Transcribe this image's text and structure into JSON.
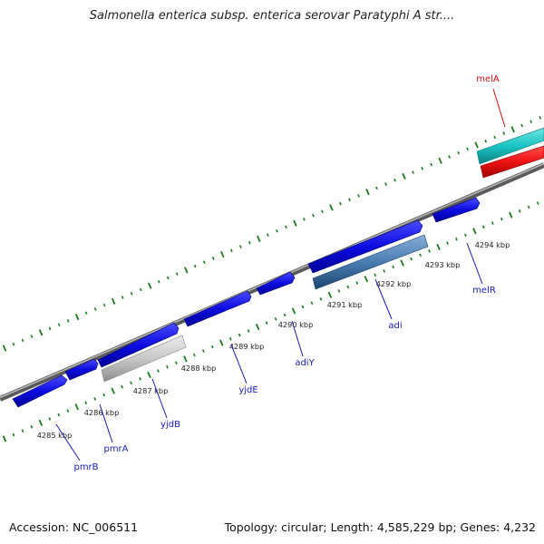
{
  "title": "Salmonella enterica subsp. enterica serovar Paratyphi A str....",
  "footer": {
    "accession": "Accession: NC_006511",
    "topology": "Topology: circular; Length: 4,585,229 bp; Genes: 4,232"
  },
  "colors": {
    "forward_gene": "#0c0ce0",
    "rna_gene": "#ee1111",
    "cyan_feature": "#19c4c4",
    "gray_feature": "#c8c8c8",
    "steel_feature": "#4a7db3",
    "tick": "#1a7a1a",
    "backbone": "#7a7a7a",
    "label_blue": "#1a1ab8",
    "label_red": "#d41111"
  },
  "ticks": [
    {
      "label": "4285 kbp"
    },
    {
      "label": "4286 kbp"
    },
    {
      "label": "4287 kbp"
    },
    {
      "label": "4288 kbp"
    },
    {
      "label": "4289 kbp"
    },
    {
      "label": "4290 kbp"
    },
    {
      "label": "4291 kbp"
    },
    {
      "label": "4292 kbp"
    },
    {
      "label": "4293 kbp"
    },
    {
      "label": "4294 kbp"
    }
  ],
  "gene_labels": [
    {
      "name": "pmrB",
      "color": "blue"
    },
    {
      "name": "pmrA",
      "color": "blue"
    },
    {
      "name": "yjdB",
      "color": "blue"
    },
    {
      "name": "yjdE",
      "color": "blue"
    },
    {
      "name": "adiY",
      "color": "blue"
    },
    {
      "name": "adi",
      "color": "blue"
    },
    {
      "name": "melR",
      "color": "blue"
    },
    {
      "name": "melA",
      "color": "red"
    }
  ]
}
